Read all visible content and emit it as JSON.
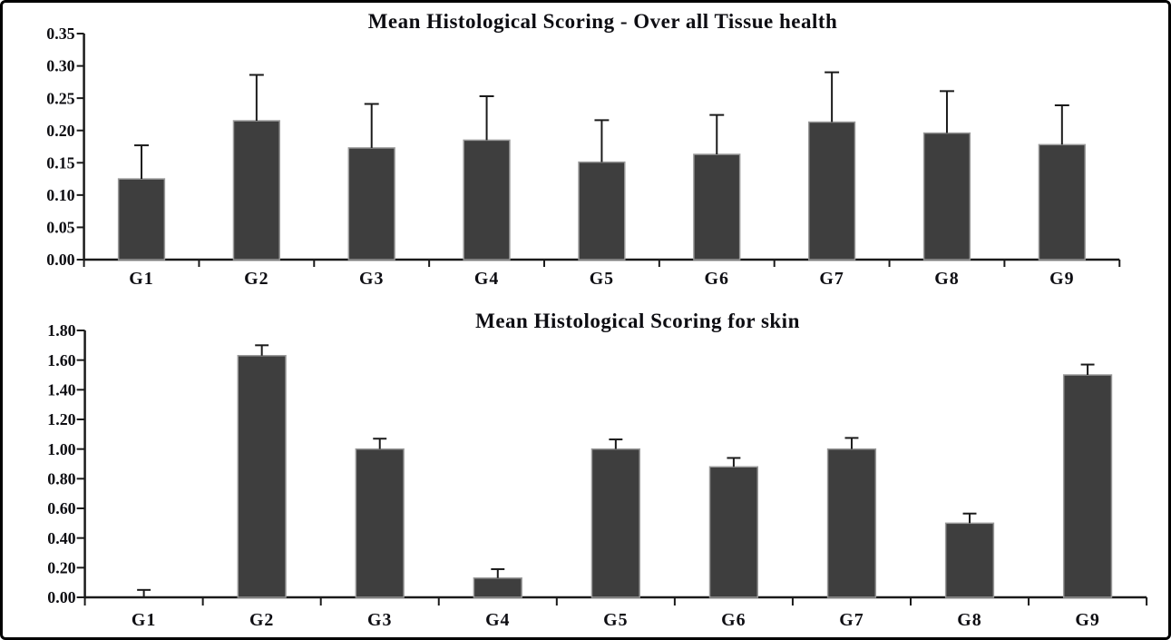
{
  "style": {
    "background": "#ffffff",
    "frame_border": "#000000",
    "bar_fill": "#3e3e3e",
    "bar_stroke": "#9a9a9a",
    "axis_color": "#1a1a1a",
    "text_color": "#0d0d12"
  },
  "chart_data": [
    {
      "type": "bar",
      "title": "Mean Histological Scoring - Over all Tissue health",
      "categories": [
        "G1",
        "G2",
        "G3",
        "G4",
        "G5",
        "G6",
        "G7",
        "G8",
        "G9"
      ],
      "values": [
        0.125,
        0.215,
        0.173,
        0.185,
        0.151,
        0.163,
        0.213,
        0.196,
        0.178
      ],
      "errors": [
        0.052,
        0.071,
        0.068,
        0.068,
        0.065,
        0.061,
        0.077,
        0.065,
        0.061
      ],
      "ylim": [
        0,
        0.35
      ],
      "ytick_step": 0.05,
      "ytick_decimals": 2,
      "xlabel": "",
      "ylabel": "",
      "grid": false,
      "legend": "none",
      "bar_color": "#3e3e3e",
      "error_bars": "upper only"
    },
    {
      "type": "bar",
      "title": "Mean Histological Scoring for skin",
      "categories": [
        "G1",
        "G2",
        "G3",
        "G4",
        "G5",
        "G6",
        "G7",
        "G8",
        "G9"
      ],
      "values": [
        0.0,
        1.63,
        1.0,
        0.13,
        1.0,
        0.88,
        1.0,
        0.5,
        1.5
      ],
      "errors": [
        0.05,
        0.07,
        0.07,
        0.06,
        0.065,
        0.06,
        0.075,
        0.065,
        0.07
      ],
      "ylim": [
        0,
        1.8
      ],
      "ytick_step": 0.2,
      "ytick_decimals": 2,
      "xlabel": "",
      "ylabel": "",
      "grid": false,
      "legend": "none",
      "bar_color": "#3e3e3e",
      "error_bars": "upper only"
    }
  ]
}
